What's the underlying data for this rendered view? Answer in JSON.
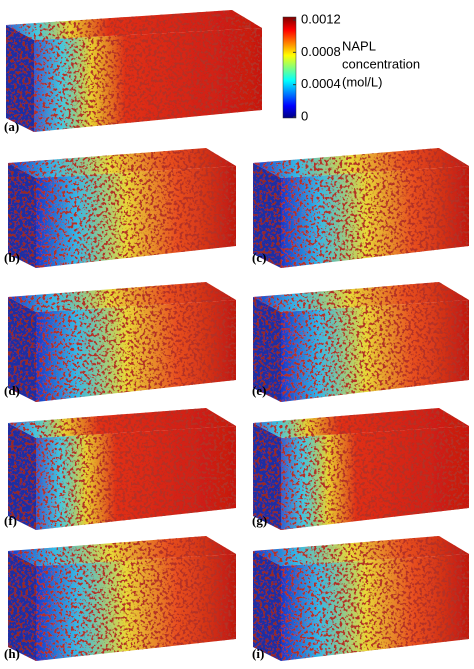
{
  "colorbar": {
    "label_lines": [
      "NAPL",
      "concentration",
      "(mol/L)"
    ],
    "lim": [
      0,
      0.0012
    ],
    "ticks": [
      0.0012,
      0.0008,
      0.0004,
      0
    ]
  },
  "panels": [
    {
      "label": "(a)"
    },
    {
      "label": "(b)"
    },
    {
      "label": "(c)"
    },
    {
      "label": "(d)"
    },
    {
      "label": "(e)"
    },
    {
      "label": "(f)"
    },
    {
      "label": "(g)"
    },
    {
      "label": "(h)"
    },
    {
      "label": "(i)"
    }
  ]
}
